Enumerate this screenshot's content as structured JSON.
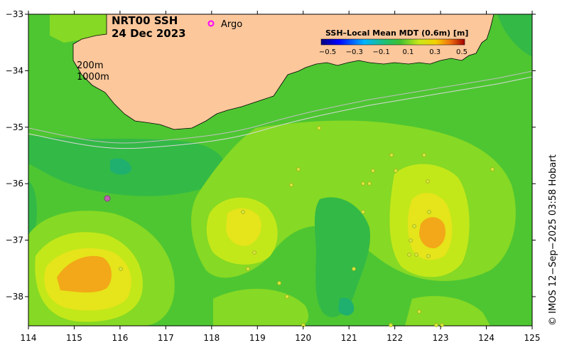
{
  "title_line1": "NRT00 SSH",
  "title_line2": "24 Dec 2023",
  "argo": {
    "symbol": "o",
    "label": "Argo",
    "color": "#ff00ff"
  },
  "depth_labels": [
    "200m",
    "1000m"
  ],
  "legend": {
    "title": "SSH–Local Mean MDT (0.6m) [m]",
    "ticks": [
      "−0.5",
      "−0.3",
      "−0.1",
      "0.1",
      "0.3",
      "0.5"
    ]
  },
  "credit": "© IMOS 12−Sep−2025 03:58 Hobart",
  "axes": {
    "x_ticks": [
      "114",
      "115",
      "116",
      "117",
      "118",
      "119",
      "120",
      "121",
      "122",
      "123",
      "124",
      "125"
    ],
    "y_ticks": [
      "−33",
      "−34",
      "−35",
      "−36",
      "−37",
      "−38"
    ]
  },
  "colors": {
    "land": "#fbc79b",
    "base_green": "#4ec632",
    "mid_green": "#33b946",
    "teal": "#1fb06f",
    "lime": "#86d924",
    "yellow_green": "#c3e81a",
    "yellow": "#e6e41a",
    "orange": "#f2a818",
    "argo_float": "#d6e63a"
  }
}
